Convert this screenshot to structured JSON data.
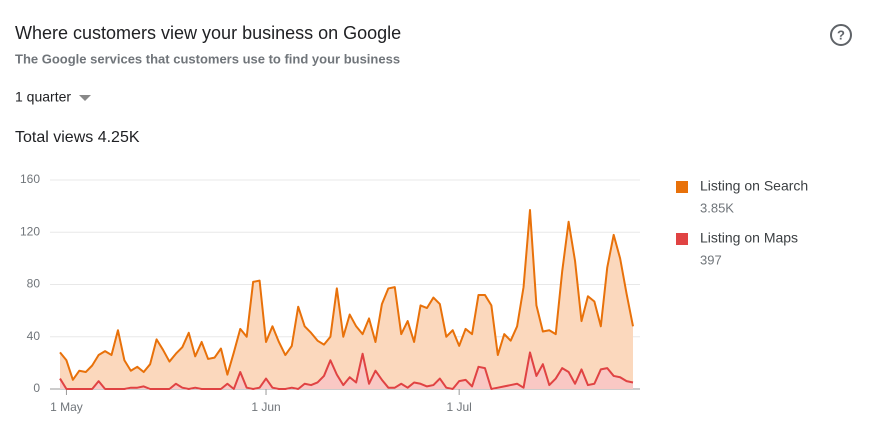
{
  "header": {
    "title": "Where customers view your business on Google",
    "subtitle": "The Google services that customers use to find your business",
    "period": "1 quarter",
    "total": "Total views 4.25K"
  },
  "chart_data": {
    "type": "area",
    "categories": [
      "30 Apr",
      "1 May",
      "2 May",
      "3 May",
      "4 May",
      "5 May",
      "6 May",
      "7 May",
      "8 May",
      "9 May",
      "10 May",
      "11 May",
      "12 May",
      "13 May",
      "14 May",
      "15 May",
      "16 May",
      "17 May",
      "18 May",
      "19 May",
      "20 May",
      "21 May",
      "22 May",
      "23 May",
      "24 May",
      "25 May",
      "26 May",
      "27 May",
      "28 May",
      "29 May",
      "30 May",
      "31 May",
      "1 Jun",
      "2 Jun",
      "3 Jun",
      "4 Jun",
      "5 Jun",
      "6 Jun",
      "7 Jun",
      "8 Jun",
      "9 Jun",
      "10 Jun",
      "11 Jun",
      "12 Jun",
      "13 Jun",
      "14 Jun",
      "15 Jun",
      "16 Jun",
      "17 Jun",
      "18 Jun",
      "19 Jun",
      "20 Jun",
      "21 Jun",
      "22 Jun",
      "23 Jun",
      "24 Jun",
      "25 Jun",
      "26 Jun",
      "27 Jun",
      "28 Jun",
      "29 Jun",
      "30 Jun",
      "1 Jul",
      "2 Jul",
      "3 Jul",
      "4 Jul",
      "5 Jul",
      "6 Jul",
      "7 Jul",
      "8 Jul",
      "9 Jul",
      "10 Jul",
      "11 Jul",
      "12 Jul",
      "13 Jul",
      "14 Jul",
      "15 Jul",
      "16 Jul",
      "17 Jul",
      "18 Jul",
      "19 Jul",
      "20 Jul",
      "21 Jul",
      "22 Jul",
      "23 Jul",
      "24 Jul",
      "25 Jul",
      "26 Jul",
      "27 Jul",
      "28 Jul"
    ],
    "series": [
      {
        "name": "Listing on Search",
        "total": "3.85K",
        "color": "#e8710a",
        "fill": "#fbd8bd",
        "values": [
          28,
          22,
          7,
          14,
          13,
          18,
          26,
          29,
          26,
          45,
          22,
          14,
          17,
          13,
          19,
          38,
          30,
          21,
          27,
          32,
          43,
          25,
          36,
          23,
          24,
          31,
          11,
          28,
          46,
          40,
          82,
          83,
          36,
          48,
          36,
          26,
          33,
          63,
          48,
          43,
          37,
          34,
          40,
          77,
          40,
          57,
          48,
          42,
          54,
          36,
          65,
          77,
          78,
          42,
          52,
          36,
          64,
          62,
          70,
          65,
          40,
          45,
          33,
          46,
          42,
          72,
          72,
          64,
          26,
          42,
          37,
          48,
          78,
          137,
          64,
          44,
          45,
          42,
          90,
          128,
          98,
          52,
          71,
          67,
          48,
          93,
          118,
          100,
          73,
          48
        ]
      },
      {
        "name": "Listing on Maps",
        "total": "397",
        "color": "#e04343",
        "fill": "#f8c7c4",
        "values": [
          8,
          0,
          0,
          0,
          0,
          0,
          6,
          0,
          0,
          0,
          0,
          1,
          1,
          2,
          0,
          0,
          0,
          0,
          4,
          1,
          0,
          1,
          0,
          0,
          0,
          0,
          4,
          0,
          13,
          1,
          0,
          1,
          8,
          1,
          0,
          0,
          1,
          0,
          4,
          3,
          5,
          10,
          22,
          11,
          3,
          9,
          5,
          27,
          4,
          14,
          7,
          1,
          1,
          4,
          1,
          5,
          4,
          2,
          3,
          8,
          1,
          0,
          6,
          7,
          2,
          17,
          16,
          0,
          1,
          2,
          3,
          4,
          1,
          28,
          10,
          19,
          3,
          8,
          16,
          13,
          4,
          15,
          3,
          4,
          15,
          16,
          10,
          9,
          6,
          5
        ]
      }
    ],
    "xticks": [
      "1 May",
      "1 Jun",
      "1 Jul"
    ],
    "ylim": [
      0,
      160
    ],
    "yticks": [
      0,
      40,
      80,
      120,
      160
    ],
    "grid": true
  }
}
